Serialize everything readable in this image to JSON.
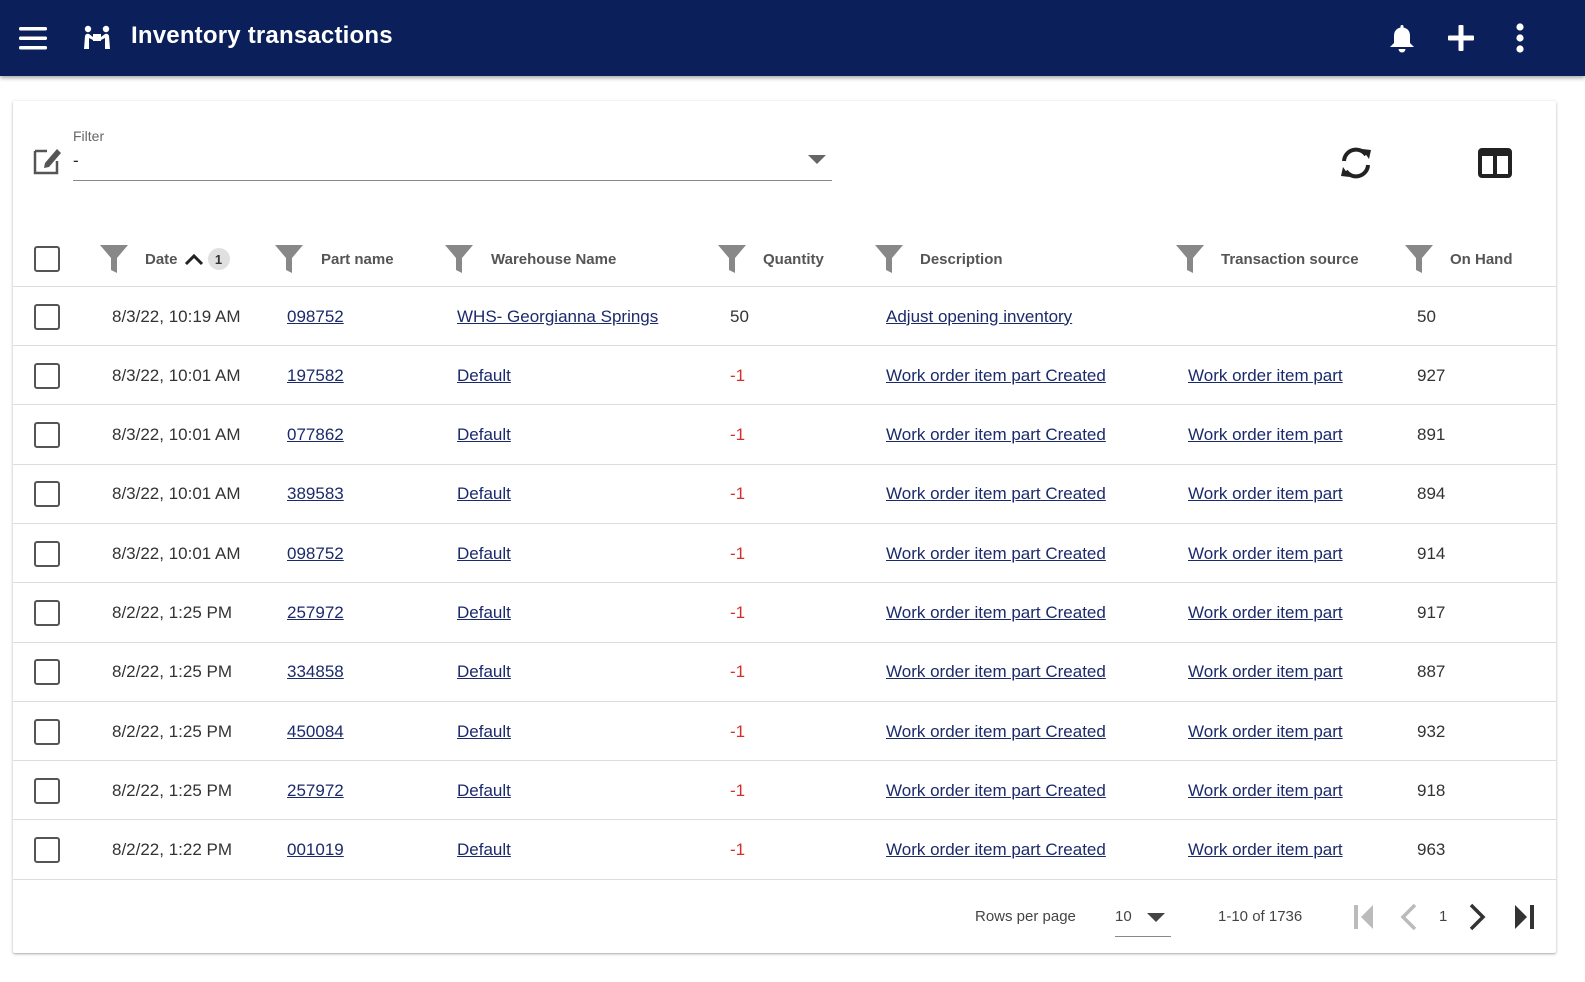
{
  "appbar": {
    "title": "Inventory transactions",
    "bg_color": "#0b1f5b"
  },
  "filter": {
    "label": "Filter",
    "value": "-"
  },
  "table": {
    "columns": [
      "Date",
      "Part name",
      "Warehouse Name",
      "Quantity",
      "Description",
      "Transaction source",
      "On Hand"
    ],
    "sort_badge": "1",
    "rows": [
      {
        "date": "8/3/22, 10:19 AM",
        "part": "098752",
        "warehouse": "WHS- Georgianna Springs",
        "quantity": "50",
        "description": "Adjust opening inventory",
        "source": "",
        "on_hand": "50"
      },
      {
        "date": "8/3/22, 10:01 AM",
        "part": "197582",
        "warehouse": "Default",
        "quantity": "-1",
        "description": "Work order item part Created",
        "source": "Work order item part",
        "on_hand": "927"
      },
      {
        "date": "8/3/22, 10:01 AM",
        "part": "077862",
        "warehouse": "Default",
        "quantity": "-1",
        "description": "Work order item part Created",
        "source": "Work order item part",
        "on_hand": "891"
      },
      {
        "date": "8/3/22, 10:01 AM",
        "part": "389583",
        "warehouse": "Default",
        "quantity": "-1",
        "description": "Work order item part Created",
        "source": "Work order item part",
        "on_hand": "894"
      },
      {
        "date": "8/3/22, 10:01 AM",
        "part": "098752",
        "warehouse": "Default",
        "quantity": "-1",
        "description": "Work order item part Created",
        "source": "Work order item part",
        "on_hand": "914"
      },
      {
        "date": "8/2/22, 1:25 PM",
        "part": "257972",
        "warehouse": "Default",
        "quantity": "-1",
        "description": "Work order item part Created",
        "source": "Work order item part",
        "on_hand": "917"
      },
      {
        "date": "8/2/22, 1:25 PM",
        "part": "334858",
        "warehouse": "Default",
        "quantity": "-1",
        "description": "Work order item part Created",
        "source": "Work order item part",
        "on_hand": "887"
      },
      {
        "date": "8/2/22, 1:25 PM",
        "part": "450084",
        "warehouse": "Default",
        "quantity": "-1",
        "description": "Work order item part Created",
        "source": "Work order item part",
        "on_hand": "932"
      },
      {
        "date": "8/2/22, 1:25 PM",
        "part": "257972",
        "warehouse": "Default",
        "quantity": "-1",
        "description": "Work order item part Created",
        "source": "Work order item part",
        "on_hand": "918"
      },
      {
        "date": "8/2/22, 1:22 PM",
        "part": "001019",
        "warehouse": "Default",
        "quantity": "-1",
        "description": "Work order item part Created",
        "source": "Work order item part",
        "on_hand": "963"
      }
    ]
  },
  "pagination": {
    "rows_per_page_label": "Rows per page",
    "rows_per_page": "10",
    "range": "1-10 of 1736",
    "page": "1"
  },
  "colors": {
    "link": "#1b2a6b",
    "negative": "#d32f2f"
  }
}
